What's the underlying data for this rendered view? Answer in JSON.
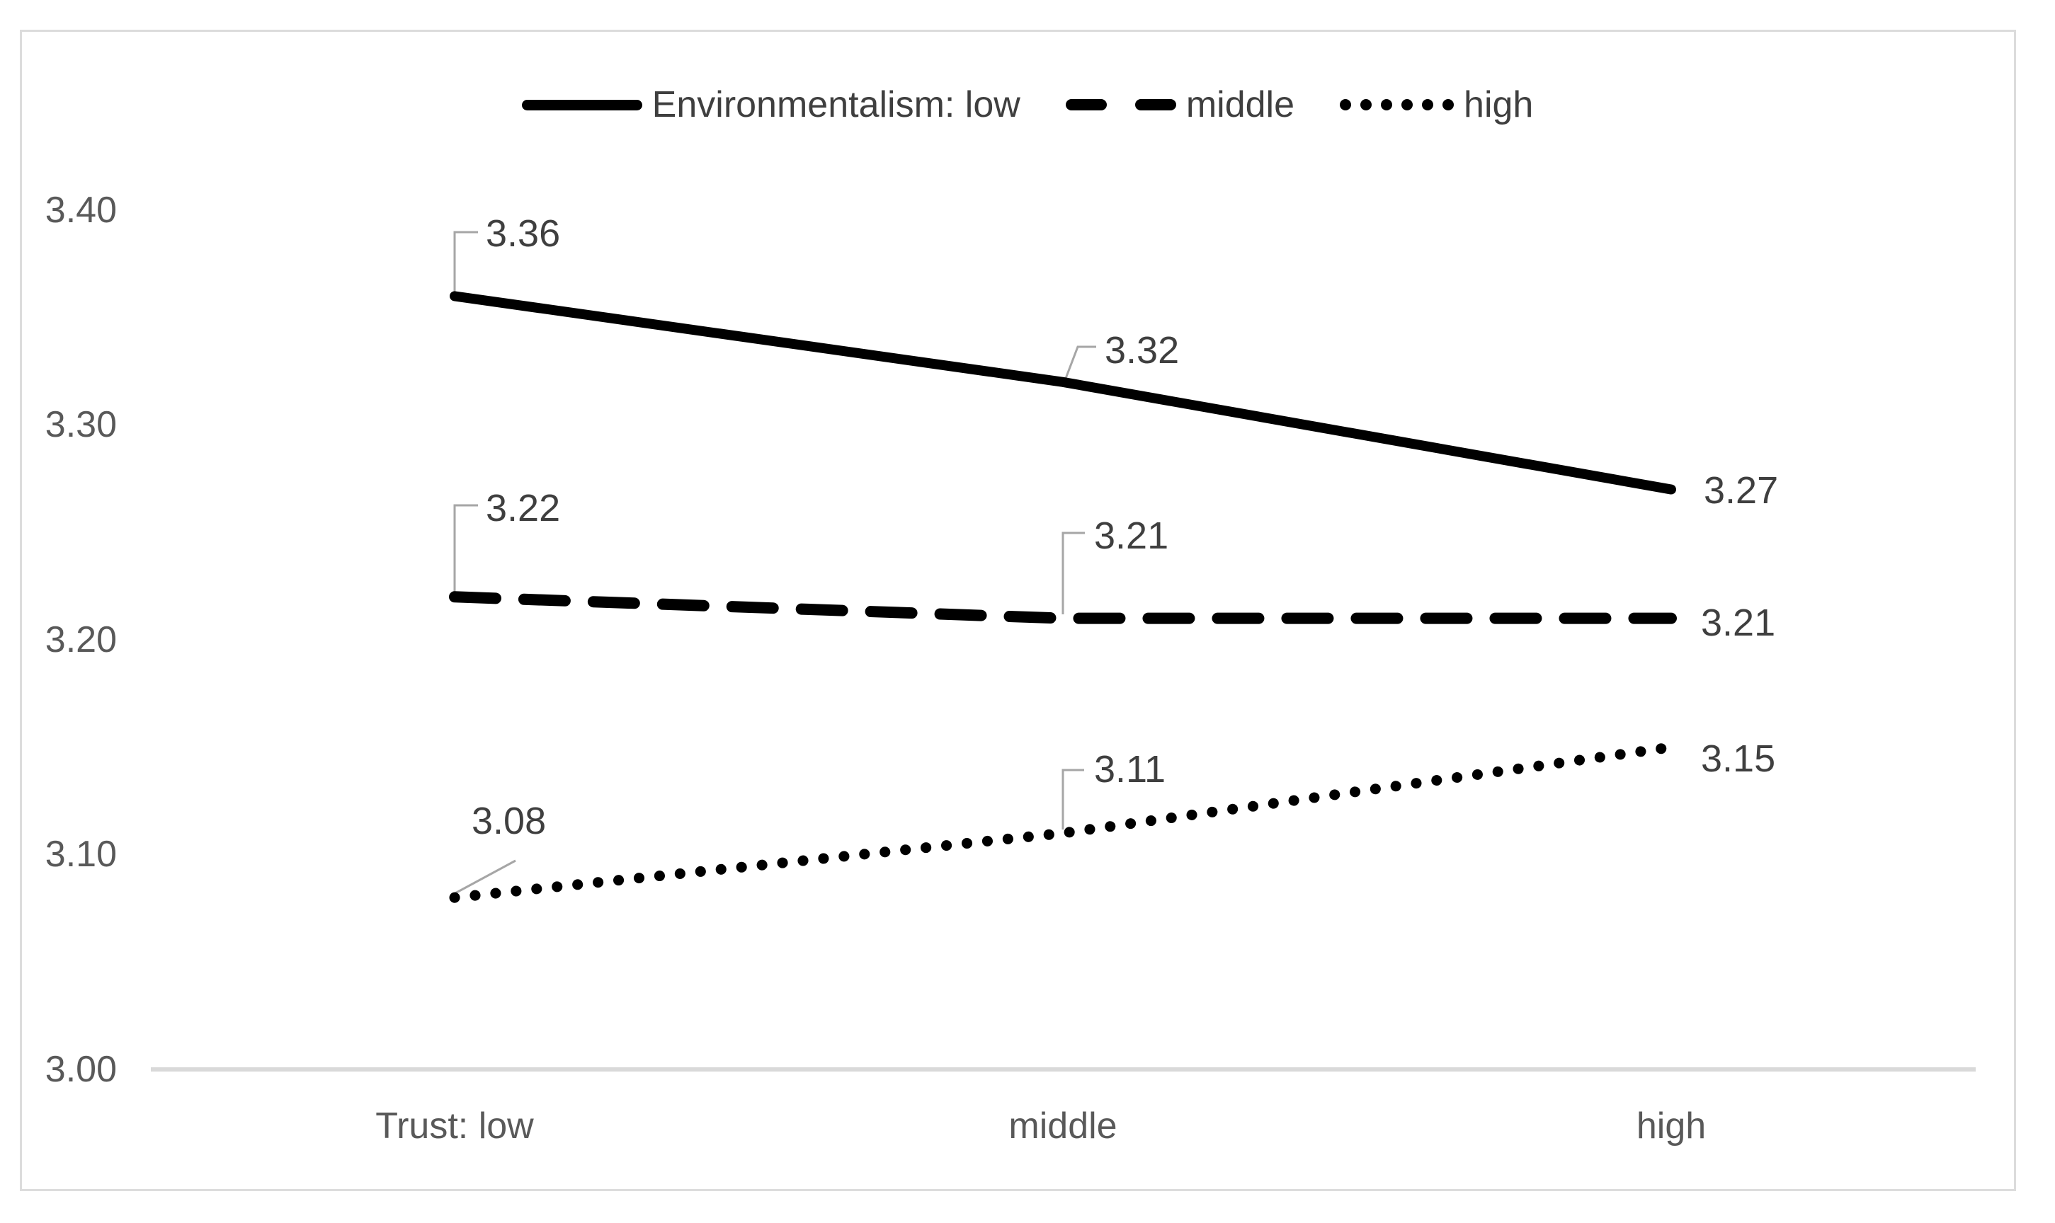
{
  "colors": {
    "line": "#000000",
    "label_text": "#3f3f3f",
    "axis_text": "#595959",
    "leader": "#a6a6a6",
    "axis_line": "#d9d9d9",
    "frame_border": "#dcdcdc",
    "background": "#ffffff"
  },
  "legend": {
    "items": [
      {
        "label": "Environmentalism: low",
        "style": "solid"
      },
      {
        "label": "middle",
        "style": "dashed"
      },
      {
        "label": "high",
        "style": "dotted"
      }
    ]
  },
  "chart_data": {
    "type": "line",
    "categories": [
      "Trust: low",
      "middle",
      "high"
    ],
    "series": [
      {
        "name": "Environmentalism: low",
        "style": "solid",
        "values": [
          3.36,
          3.32,
          3.27
        ],
        "labels": [
          "3.36",
          "3.32",
          "3.27"
        ]
      },
      {
        "name": "middle",
        "style": "dashed",
        "values": [
          3.22,
          3.21,
          3.21
        ],
        "labels": [
          "3.22",
          "3.21",
          "3.21"
        ]
      },
      {
        "name": "high",
        "style": "dotted",
        "values": [
          3.08,
          3.11,
          3.15
        ],
        "labels": [
          "3.08",
          "3.11",
          "3.15"
        ]
      }
    ],
    "y_axis": {
      "min": 3.0,
      "max": 3.4,
      "tick_step": 0.1,
      "tick_labels": [
        "3.40",
        "3.30",
        "3.20",
        "3.10",
        "3.00"
      ]
    },
    "grid": "off",
    "legend_position": "top",
    "data_labels": "on"
  }
}
